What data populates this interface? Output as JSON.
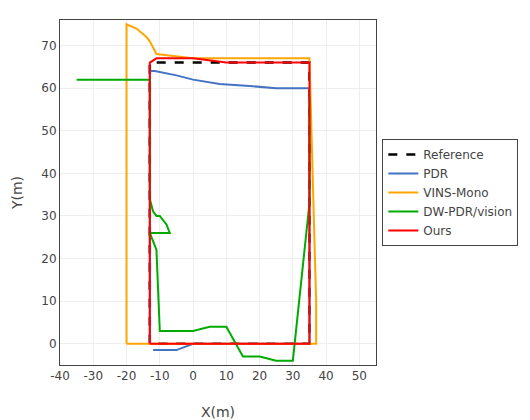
{
  "chart_data": {
    "type": "line",
    "xlabel": "X(m)",
    "ylabel": "Y(m)",
    "xlim": [
      -40,
      55
    ],
    "ylim": [
      -5,
      76
    ],
    "xticks": [
      -40,
      -30,
      -20,
      -10,
      0,
      10,
      20,
      30,
      40,
      50
    ],
    "yticks": [
      0,
      10,
      20,
      30,
      40,
      50,
      60,
      70
    ],
    "grid": true,
    "legend": "right",
    "series": [
      {
        "name": "Reference",
        "color": "#000000",
        "line_style": "dashed",
        "x": [
          -13,
          -13,
          35,
          35,
          -13
        ],
        "values": [
          0,
          66,
          66,
          0,
          0
        ]
      },
      {
        "name": "PDR",
        "color": "#4472C4",
        "line_style": "solid",
        "x": [
          -13,
          -13,
          -11.5,
          -5,
          0,
          8,
          17,
          25,
          33,
          35,
          35,
          35,
          33,
          0,
          -5,
          -12
        ],
        "values": [
          0,
          64,
          64,
          63,
          62,
          61,
          60.5,
          60,
          60,
          60,
          2,
          0,
          0,
          0,
          -1.5,
          -1.5
        ]
      },
      {
        "name": "VINS-Mono",
        "color": "#FFA500",
        "line_style": "solid",
        "x": [
          -20,
          -20,
          -17,
          -14,
          -13,
          -11,
          0,
          15,
          30,
          35,
          37,
          37,
          35,
          0,
          -13,
          -20
        ],
        "values": [
          0,
          75,
          74,
          72,
          71,
          68,
          67,
          67,
          67,
          67,
          10,
          0,
          0,
          0,
          0,
          0
        ]
      },
      {
        "name": "DW-PDR/vision",
        "color": "#00AA00",
        "line_style": "solid",
        "x": [
          -35,
          -13,
          -13,
          -13,
          -12,
          -11,
          -10,
          -9,
          -8,
          -7,
          -13,
          -12,
          -11,
          -10,
          -5,
          0,
          5,
          10,
          15,
          20,
          25,
          30,
          35,
          35
        ],
        "values": [
          62,
          62,
          38,
          34,
          31,
          30,
          30,
          29,
          28,
          26,
          26,
          24,
          22,
          3,
          3,
          3,
          4,
          4,
          -3,
          -3,
          -4,
          -4,
          33,
          58
        ]
      },
      {
        "name": "Ours",
        "color": "#FF0000",
        "line_style": "solid",
        "x": [
          -13,
          -13,
          -11,
          0,
          10,
          20,
          30,
          35,
          35,
          35,
          0,
          -13
        ],
        "values": [
          0,
          66,
          67,
          67,
          66,
          66,
          66,
          66,
          61,
          0,
          0,
          0
        ]
      }
    ]
  }
}
